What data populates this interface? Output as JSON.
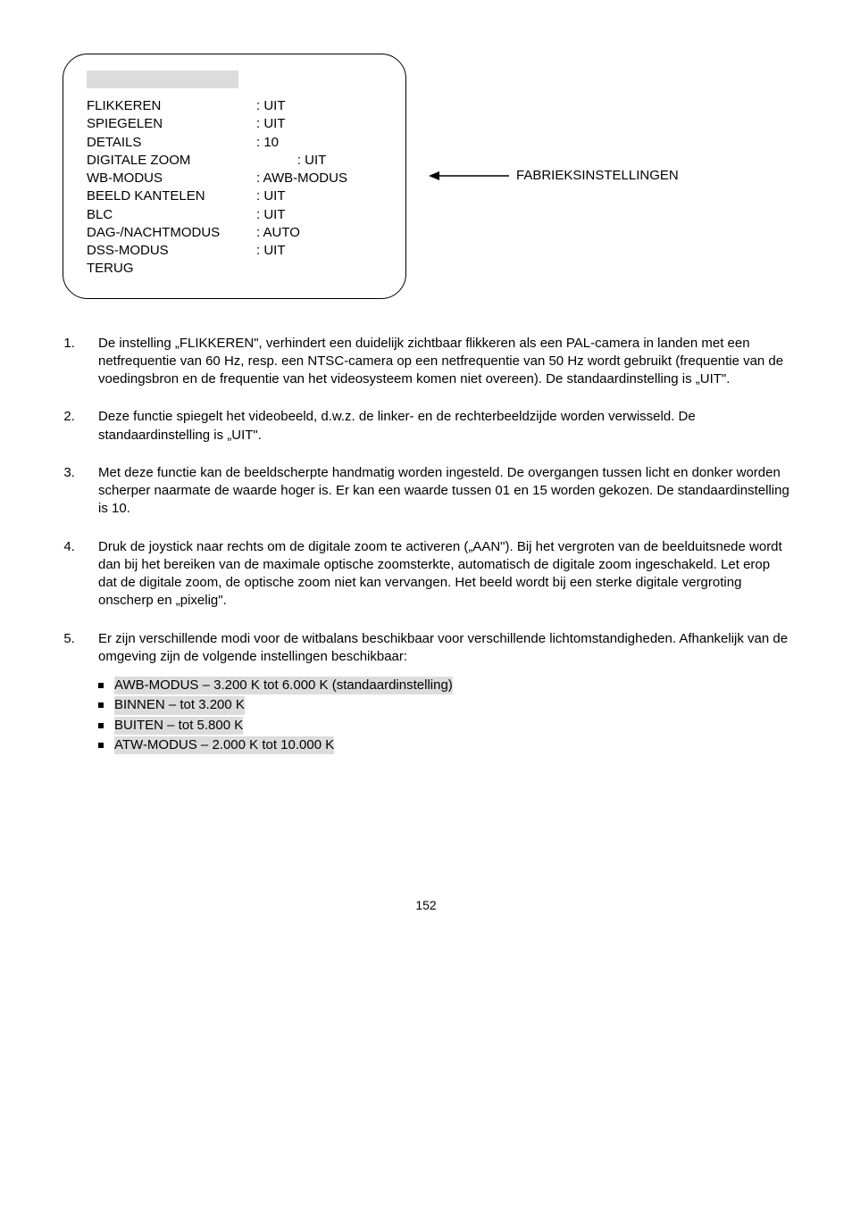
{
  "menu": {
    "lines": [
      {
        "label": "FLIKKEREN",
        "value": ": UIT"
      },
      {
        "label": "SPIEGELEN",
        "value": ": UIT"
      },
      {
        "label": "DETAILS",
        "value": ": 10"
      },
      {
        "label": "DIGITALE ZOOM",
        "value": "           : UIT"
      },
      {
        "label": "WB-MODUS",
        "value": ": AWB-MODUS"
      },
      {
        "label": "BEELD KANTELEN",
        "value": ": UIT"
      },
      {
        "label": "BLC",
        "value": ": UIT"
      },
      {
        "label": "DAG-/NACHTMODUS",
        "value": ": AUTO"
      },
      {
        "label": "DSS-MODUS",
        "value": ": UIT"
      },
      {
        "label": "TERUG",
        "value": ""
      }
    ],
    "label_widths": [
      190,
      190,
      190,
      190,
      190,
      190,
      190,
      190,
      190,
      190
    ],
    "highlight_color": "#dcdcdc",
    "arrow_label": "FABRIEKSINSTELLINGEN"
  },
  "sections": [
    {
      "body": "De instelling „FLIKKEREN\", verhindert een duidelijk zichtbaar flikkeren als een PAL-camera in landen met een netfrequentie van 60 Hz, resp. een NTSC-camera op een netfrequentie van 50 Hz wordt gebruikt (frequentie van de voedingsbron en de frequentie van het videosysteem komen niet overeen). De standaardinstelling is „UIT\"."
    },
    {
      "body": "Deze functie spiegelt het videobeeld, d.w.z. de linker- en de rechterbeeldzijde worden verwisseld. De standaardinstelling is „UIT\"."
    },
    {
      "body": "Met deze functie kan de beeldscherpte handmatig worden ingesteld. De overgangen tussen licht en donker worden scherper naarmate de waarde hoger is. Er kan een waarde tussen 01 en 15 worden gekozen. De standaardinstelling is 10."
    },
    {
      "body": "Druk de joystick naar rechts om de digitale zoom te activeren („AAN\"). Bij het vergroten van de beelduitsnede wordt dan bij het bereiken van de maximale optische zoomsterkte, automatisch de digitale zoom ingeschakeld. Let erop dat de digitale zoom, de optische zoom niet kan vervangen. Het beeld wordt bij een sterke digitale vergroting onscherp en „pixelig\"."
    },
    {
      "body": "Er zijn verschillende modi voor de witbalans beschikbaar voor verschillende lichtomstandigheden. Afhankelijk van de omgeving zijn de volgende instellingen beschikbaar:",
      "sub": [
        {
          "text": "AWB-MODUS – 3.200 K tot 6.000 K (standaardinstelling)",
          "hl": true
        },
        {
          "text": "BINNEN – tot 3.200 K",
          "hl": true
        },
        {
          "text": "BUITEN – tot 5.800 K",
          "hl": true
        },
        {
          "text": "ATW-MODUS – 2.000 K tot 10.000 K",
          "hl": true
        }
      ]
    }
  ],
  "page_number": "152"
}
